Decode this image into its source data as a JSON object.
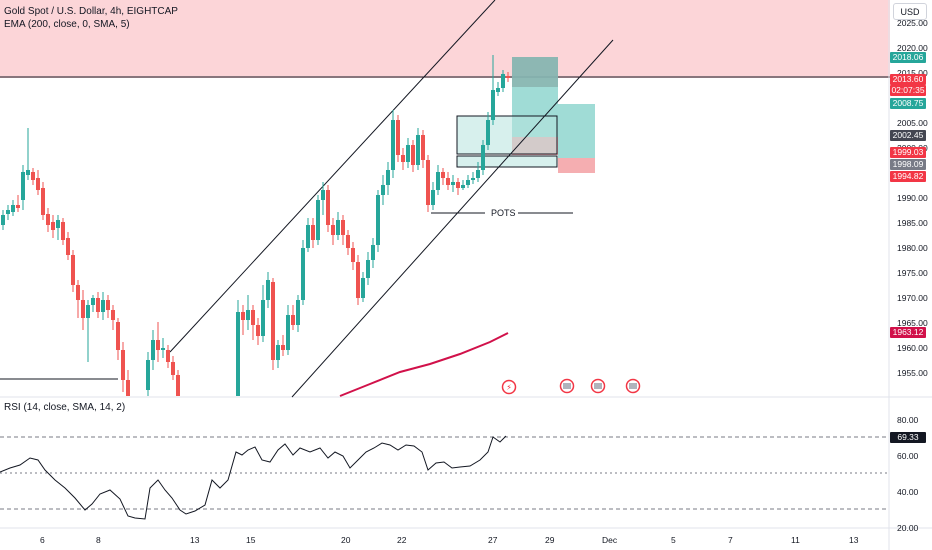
{
  "header": {
    "symbol_title": "Gold Spot / U.S. Dollar, 4h, EIGHTCAP",
    "indicator": "EMA (200, close, 0, SMA, 5)",
    "currency_button": "USD"
  },
  "rsi": {
    "title": "RSI (14, close, SMA, 14, 2)",
    "value": "69.33",
    "ticks": [
      "80.00",
      "60.00",
      "40.00",
      "20.00"
    ]
  },
  "price_axis": {
    "ticks": [
      "2025.00",
      "2020.00",
      "2015.00",
      "2005.00",
      "2000.00",
      "1990.00",
      "1985.00",
      "1980.00",
      "1975.00",
      "1970.00",
      "1965.00",
      "1960.00",
      "1955.00"
    ]
  },
  "price_tags": [
    {
      "value": "2018.06",
      "color": "#26a69a"
    },
    {
      "value": "2013.60",
      "color": "#f23645"
    },
    {
      "value": "02:07:35",
      "color": "#f23645"
    },
    {
      "value": "2008.75",
      "color": "#26a69a"
    },
    {
      "value": "2002.45",
      "color": "#434651"
    },
    {
      "value": "1999.03",
      "color": "#f23645"
    },
    {
      "value": "1998.09",
      "color": "#787b86"
    },
    {
      "value": "1994.82",
      "color": "#f23645"
    },
    {
      "value": "1963.12",
      "color": "#d1114a"
    }
  ],
  "time_axis": {
    "ticks": [
      "6",
      "8",
      "13",
      "15",
      "20",
      "22",
      "27",
      "29",
      "Dec",
      "5",
      "7",
      "11",
      "13"
    ]
  },
  "annotations": {
    "pots_label": "POTS"
  },
  "colors": {
    "up": "#26a69a",
    "down": "#ef5350",
    "resistance_zone": "#fcd5d8",
    "ema": "#d1114a"
  }
}
